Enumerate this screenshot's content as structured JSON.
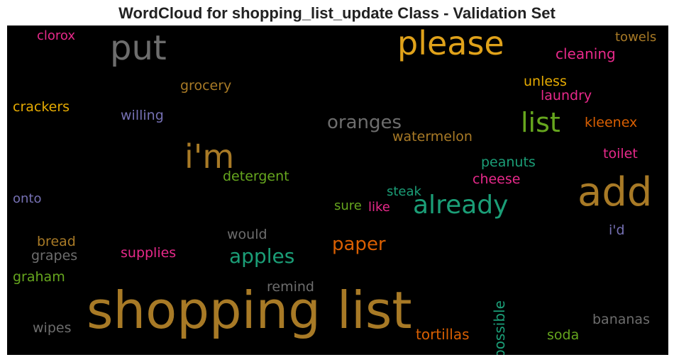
{
  "chart_data": {
    "type": "wordcloud",
    "title": "WordCloud for shopping_list_update Class - Validation Set",
    "background": "#000000",
    "words": [
      {
        "text": "shopping list",
        "color": "#a87a26"
      },
      {
        "text": "add",
        "color": "#a87a26"
      },
      {
        "text": "i'm",
        "color": "#a87a26"
      },
      {
        "text": "please",
        "color": "#e0a21a"
      },
      {
        "text": "put",
        "color": "#6d6d6d"
      },
      {
        "text": "already",
        "color": "#1b9e77"
      },
      {
        "text": "list",
        "color": "#66a61e"
      },
      {
        "text": "apples",
        "color": "#1b9e77"
      },
      {
        "text": "oranges",
        "color": "#6d6d6d"
      },
      {
        "text": "paper",
        "color": "#d95f02"
      },
      {
        "text": "tortillas",
        "color": "#d95f02"
      },
      {
        "text": "clorox",
        "color": "#e7298a"
      },
      {
        "text": "towels",
        "color": "#a87a26"
      },
      {
        "text": "cleaning",
        "color": "#e7298a"
      },
      {
        "text": "grocery",
        "color": "#a87a26"
      },
      {
        "text": "unless",
        "color": "#e6ab02"
      },
      {
        "text": "laundry",
        "color": "#e7298a"
      },
      {
        "text": "crackers",
        "color": "#e6ab02"
      },
      {
        "text": "willing",
        "color": "#7570b3"
      },
      {
        "text": "kleenex",
        "color": "#d95f02"
      },
      {
        "text": "watermelon",
        "color": "#a87a26"
      },
      {
        "text": "peanuts",
        "color": "#1b9e77"
      },
      {
        "text": "toilet",
        "color": "#e7298a"
      },
      {
        "text": "detergent",
        "color": "#66a61e"
      },
      {
        "text": "cheese",
        "color": "#e7298a"
      },
      {
        "text": "steak",
        "color": "#1b9e77"
      },
      {
        "text": "onto",
        "color": "#7570b3"
      },
      {
        "text": "sure",
        "color": "#66a61e"
      },
      {
        "text": "like",
        "color": "#e7298a"
      },
      {
        "text": "would",
        "color": "#6d6d6d"
      },
      {
        "text": "i'd",
        "color": "#7570b3"
      },
      {
        "text": "bread",
        "color": "#a87a26"
      },
      {
        "text": "grapes",
        "color": "#6d6d6d"
      },
      {
        "text": "supplies",
        "color": "#e7298a"
      },
      {
        "text": "graham",
        "color": "#66a61e"
      },
      {
        "text": "remind",
        "color": "#6d6d6d"
      },
      {
        "text": "possible",
        "color": "#1b9e77"
      },
      {
        "text": "bananas",
        "color": "#6d6d6d"
      },
      {
        "text": "wipes",
        "color": "#6d6d6d"
      },
      {
        "text": "soda",
        "color": "#66a61e"
      }
    ]
  }
}
